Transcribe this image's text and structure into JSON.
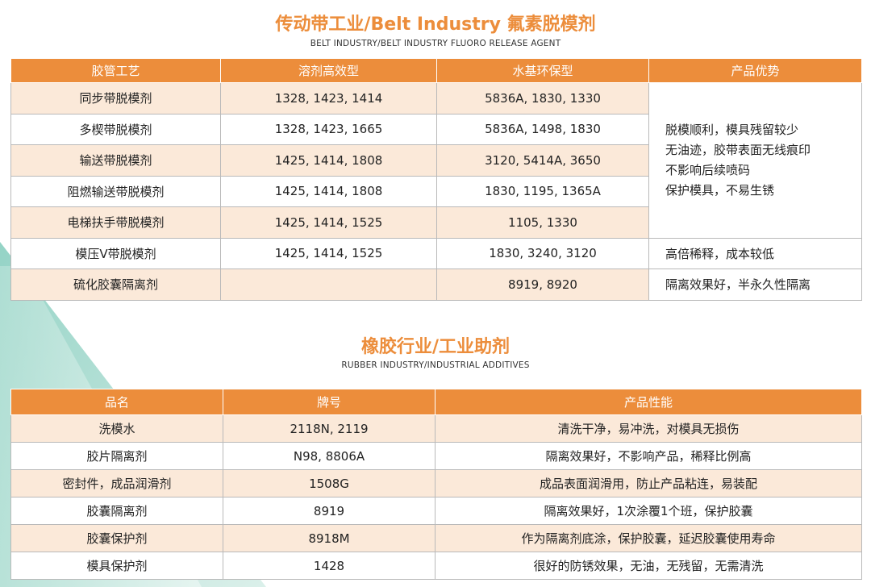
{
  "section1": {
    "title": "传动带工业/Belt Industry 氟素脱模剂",
    "subtitle": "BELT INDUSTRY/BELT INDUSTRY FLUORO RELEASE AGENT",
    "headers": [
      "胶管工艺",
      "溶剂高效型",
      "水基环保型",
      "产品优势"
    ],
    "rows": [
      {
        "name": "同步带脱模剂",
        "solvent": "1328, 1423, 1414",
        "water": "5836A, 1830, 1330"
      },
      {
        "name": "多楔带脱模剂",
        "solvent": "1328, 1423, 1665",
        "water": "5836A, 1498, 1830"
      },
      {
        "name": "输送带脱模剂",
        "solvent": "1425, 1414, 1808",
        "water": "3120, 5414A, 3650"
      },
      {
        "name": "阻燃输送带脱模剂",
        "solvent": "1425, 1414, 1808",
        "water": "1830, 1195, 1365A"
      },
      {
        "name": "电梯扶手带脱模剂",
        "solvent": "1425, 1414, 1525",
        "water": "1105, 1330"
      },
      {
        "name": "模压V带脱模剂",
        "solvent": "1425, 1414, 1525",
        "water": "1830, 3240, 3120",
        "advantage": "高倍稀释，成本较低"
      },
      {
        "name": "硫化胶囊隔离剂",
        "solvent": "",
        "water": "8919, 8920",
        "advantage": "隔离效果好，半永久性隔离"
      }
    ],
    "advantage_block": [
      "脱模顺利，模具残留较少",
      "无油迹，胶带表面无线痕印",
      "不影响后续喷码",
      "保护模具，不易生锈"
    ]
  },
  "section2": {
    "title": "橡胶行业/工业助剂",
    "subtitle": "RUBBER INDUSTRY/INDUSTRIAL ADDITIVES",
    "headers": [
      "品名",
      "牌号",
      "产品性能"
    ],
    "rows": [
      {
        "name": "洗模水",
        "grade": "2118N, 2119",
        "perf": "清洗干净，易冲洗，对模具无损伤"
      },
      {
        "name": "胶片隔离剂",
        "grade": "N98, 8806A",
        "perf": "隔离效果好，不影响产品，稀释比例高"
      },
      {
        "name": "密封件，成品润滑剂",
        "grade": "1508G",
        "perf": "成品表面润滑用，防止产品粘连，易装配"
      },
      {
        "name": "胶囊隔离剂",
        "grade": "8919",
        "perf": "隔离效果好，1次涂覆1个班，保护胶囊"
      },
      {
        "name": "胶囊保护剂",
        "grade": "8918M",
        "perf": "作为隔离剂底涂，保护胶囊，延迟胶囊使用寿命"
      },
      {
        "name": "模具保护剂",
        "grade": "1428",
        "perf": "很好的防锈效果，无油，无残留，无需清洗"
      }
    ]
  },
  "colors": {
    "accent": "#ec8d3b",
    "row_tint": "#fbe9d9",
    "decor_teal": "#9bd5c7"
  }
}
